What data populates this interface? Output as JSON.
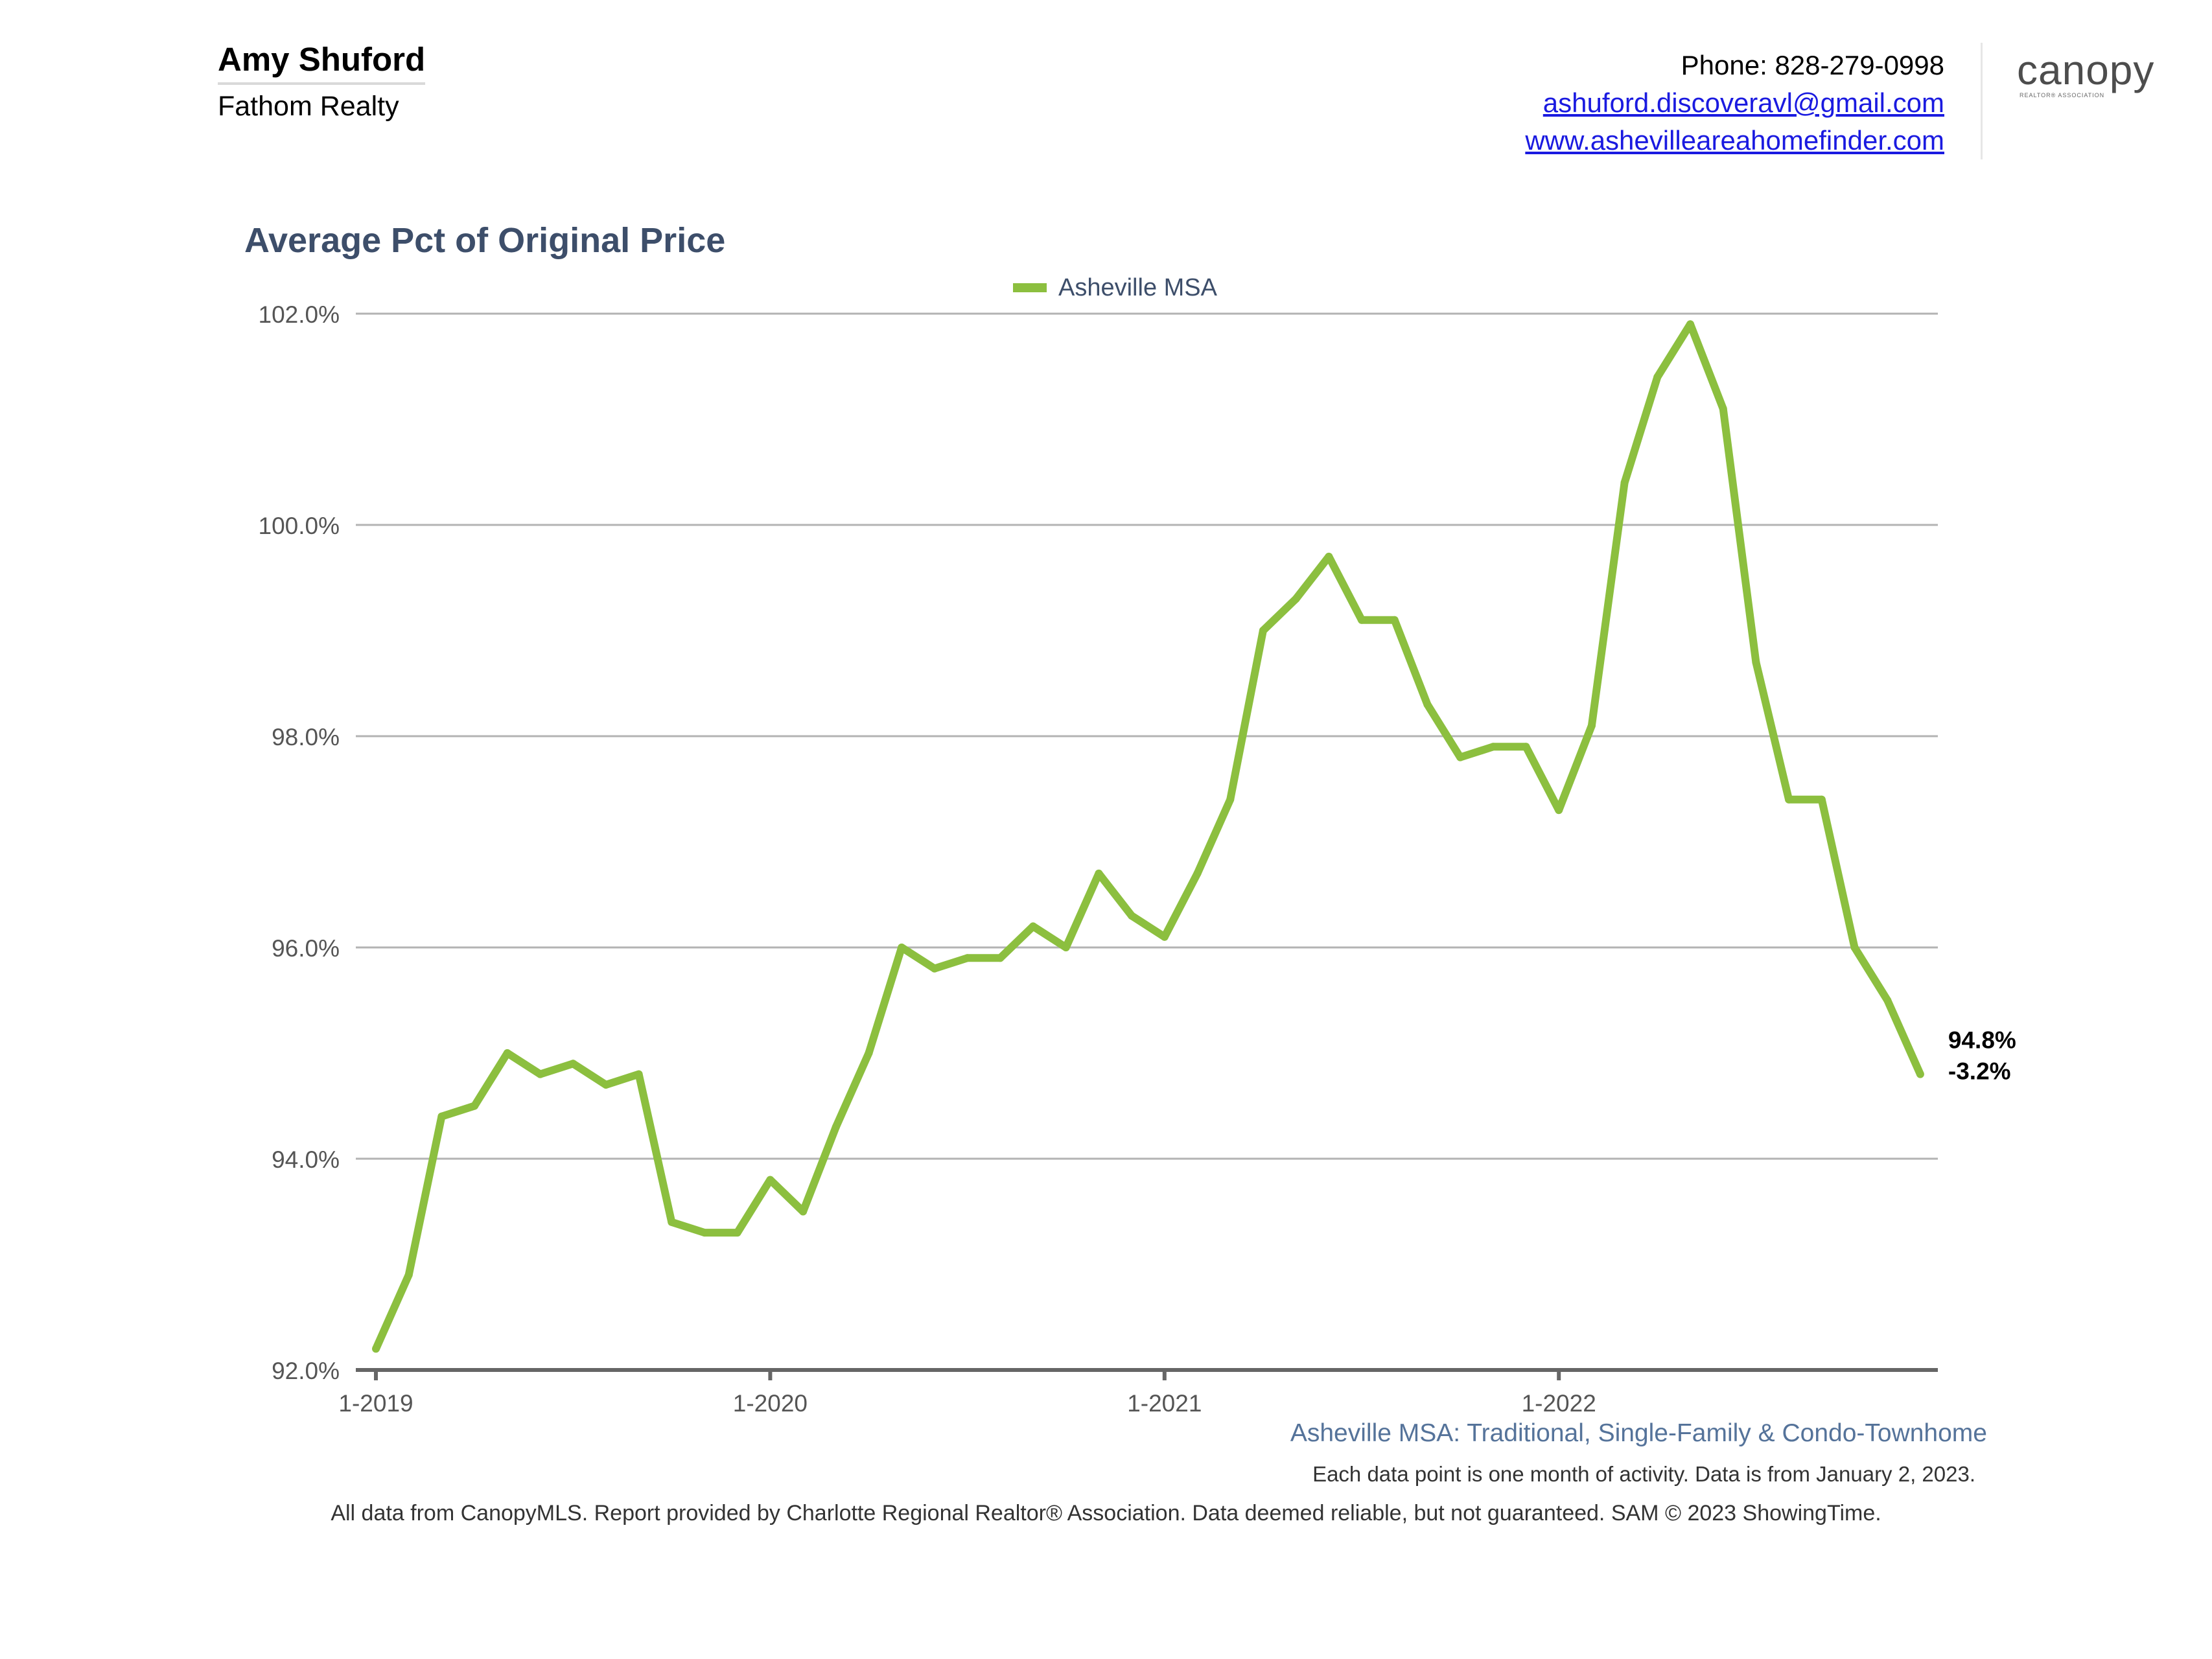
{
  "header": {
    "agent_name": "Amy Shuford",
    "company": "Fathom Realty",
    "phone": "Phone: 828-279-0998",
    "email": "ashuford.discoveravl@gmail.com",
    "website": "www.ashevilleareahomefinder.com",
    "logo_text": "canopy",
    "logo_sub": "REALTOR® ASSOCIATION"
  },
  "chart_data": {
    "type": "line",
    "title": "Average Pct of Original Price",
    "xlabel": "",
    "ylabel": "",
    "ylim": [
      92.0,
      102.0
    ],
    "yticks": [
      92.0,
      94.0,
      96.0,
      98.0,
      100.0,
      102.0
    ],
    "ytick_labels": [
      "92.0%",
      "94.0%",
      "96.0%",
      "98.0%",
      "100.0%",
      "102.0%"
    ],
    "xtick_labels": [
      "1-2019",
      "1-2020",
      "1-2021",
      "1-2022"
    ],
    "grid": true,
    "legend_position": "top-center",
    "line_color": "#8cbf3f",
    "series": [
      {
        "name": "Asheville MSA",
        "x": [
          "2019-01",
          "2019-02",
          "2019-03",
          "2019-04",
          "2019-05",
          "2019-06",
          "2019-07",
          "2019-08",
          "2019-09",
          "2019-10",
          "2019-11",
          "2019-12",
          "2020-01",
          "2020-02",
          "2020-03",
          "2020-04",
          "2020-05",
          "2020-06",
          "2020-07",
          "2020-08",
          "2020-09",
          "2020-10",
          "2020-11",
          "2020-12",
          "2021-01",
          "2021-02",
          "2021-03",
          "2021-04",
          "2021-05",
          "2021-06",
          "2021-07",
          "2021-08",
          "2021-09",
          "2021-10",
          "2021-11",
          "2021-12",
          "2022-01",
          "2022-02",
          "2022-03",
          "2022-04",
          "2022-05",
          "2022-06",
          "2022-07",
          "2022-08",
          "2022-09",
          "2022-10",
          "2022-11",
          "2022-12"
        ],
        "values": [
          92.2,
          92.9,
          94.4,
          94.5,
          95.0,
          94.8,
          94.9,
          94.7,
          94.8,
          93.4,
          93.3,
          93.3,
          93.8,
          93.5,
          94.3,
          95.0,
          96.0,
          95.8,
          95.9,
          95.9,
          96.2,
          96.0,
          96.7,
          96.3,
          96.1,
          96.7,
          97.4,
          99.0,
          99.3,
          99.7,
          99.1,
          99.1,
          98.3,
          97.8,
          97.9,
          97.9,
          97.3,
          98.1,
          100.4,
          101.4,
          101.9,
          101.1,
          98.7,
          97.4,
          97.4,
          96.0,
          95.5,
          94.8
        ]
      }
    ],
    "annotation": {
      "value_label": "94.8%",
      "change_label": "-3.2%"
    },
    "subtitle": "Asheville MSA: Traditional, Single-Family & Condo-Townhome"
  },
  "footer": {
    "note": "Each data point is one month of activity. Data is from January 2, 2023.",
    "credit": "All data from CanopyMLS. Report provided by Charlotte Regional Realtor® Association. Data deemed reliable, but not guaranteed. SAM © 2023 ShowingTime."
  }
}
